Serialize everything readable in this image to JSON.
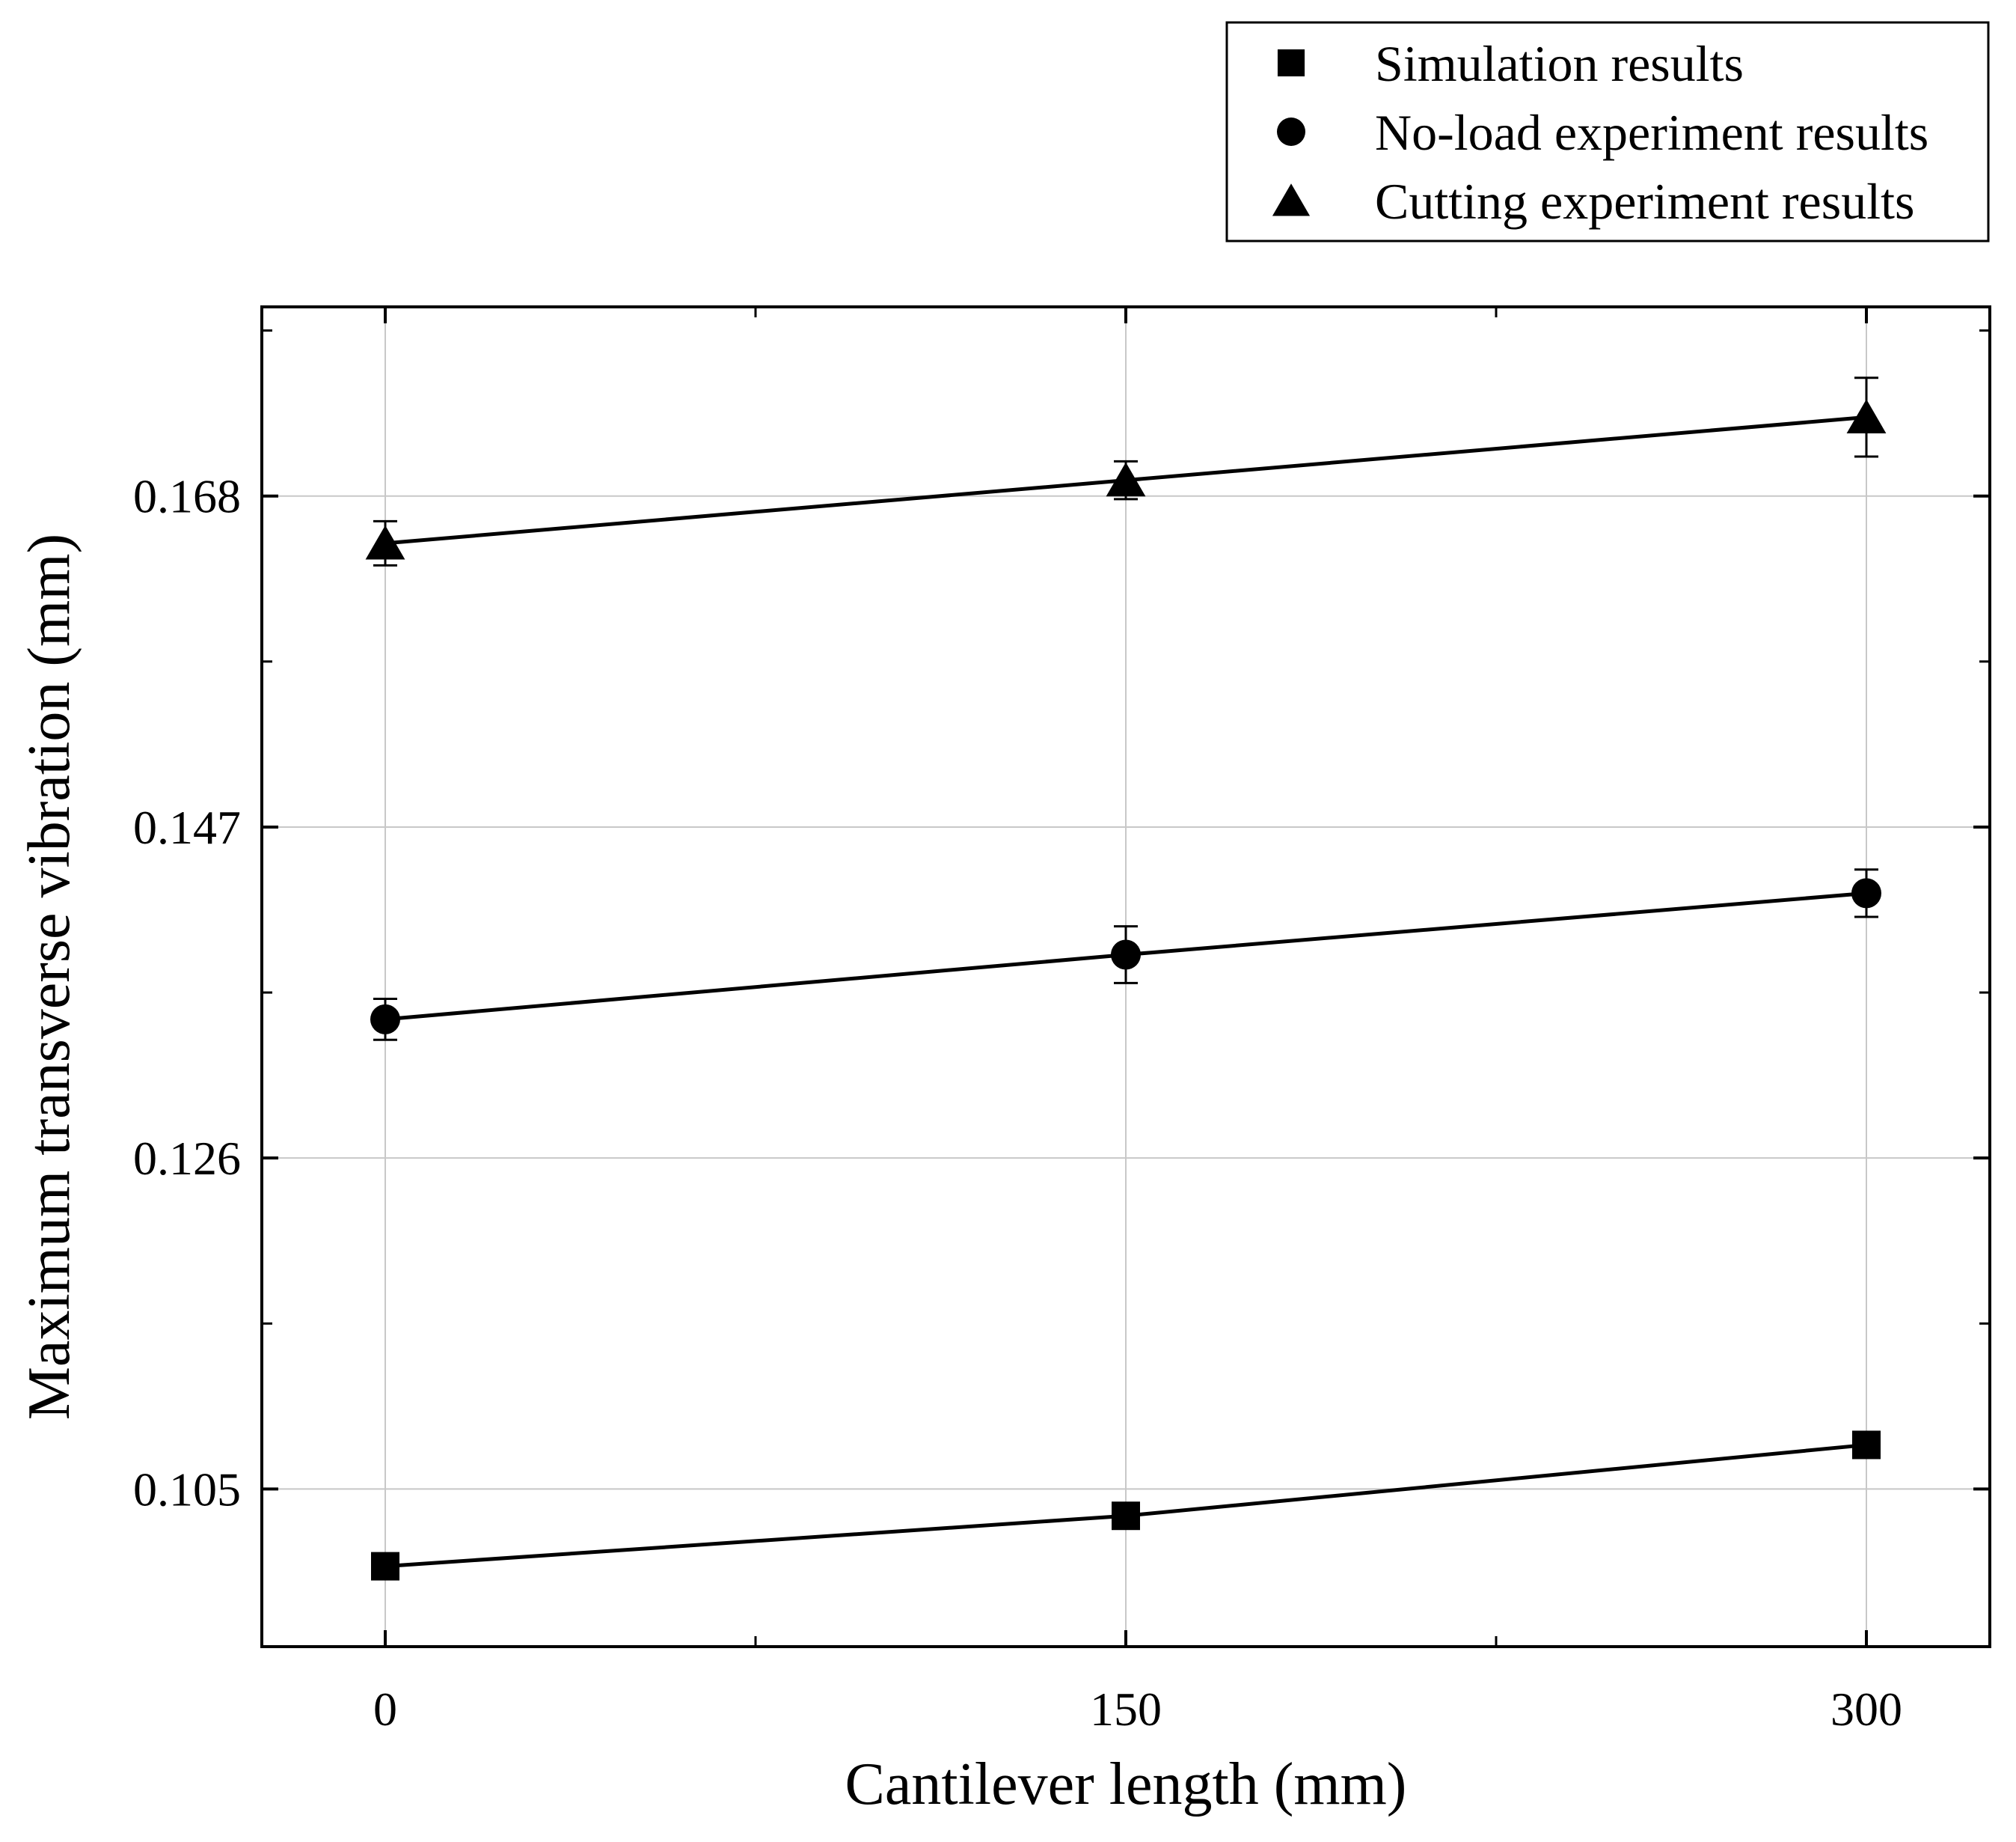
{
  "chart_data": {
    "type": "line",
    "title": "",
    "xlabel": "Cantilever length (mm)",
    "ylabel": "Maximum transverse  vibration (mm)",
    "x": [
      0,
      150,
      300
    ],
    "x_ticks": [
      "0",
      "150",
      "300"
    ],
    "y_ticks": [
      "0.105",
      "0.126",
      "0.147",
      "0.168"
    ],
    "xlim": [
      -25,
      325
    ],
    "ylim": [
      0.095,
      0.18
    ],
    "grid": true,
    "legend_position": "top-right, outside plot",
    "series": [
      {
        "name": "Simulation results",
        "marker": "square",
        "values": [
          0.1001,
          0.1033,
          0.1078
        ],
        "errors": [
          0,
          0,
          0
        ]
      },
      {
        "name": "No-load experiment results",
        "marker": "circle",
        "values": [
          0.1348,
          0.1389,
          0.1428
        ],
        "errors": [
          0.0013,
          0.0018,
          0.0015
        ]
      },
      {
        "name": "Cutting experiment results",
        "marker": "triangle",
        "values": [
          0.165,
          0.169,
          0.173
        ],
        "errors": [
          0.0014,
          0.0012,
          0.0025
        ]
      }
    ]
  }
}
